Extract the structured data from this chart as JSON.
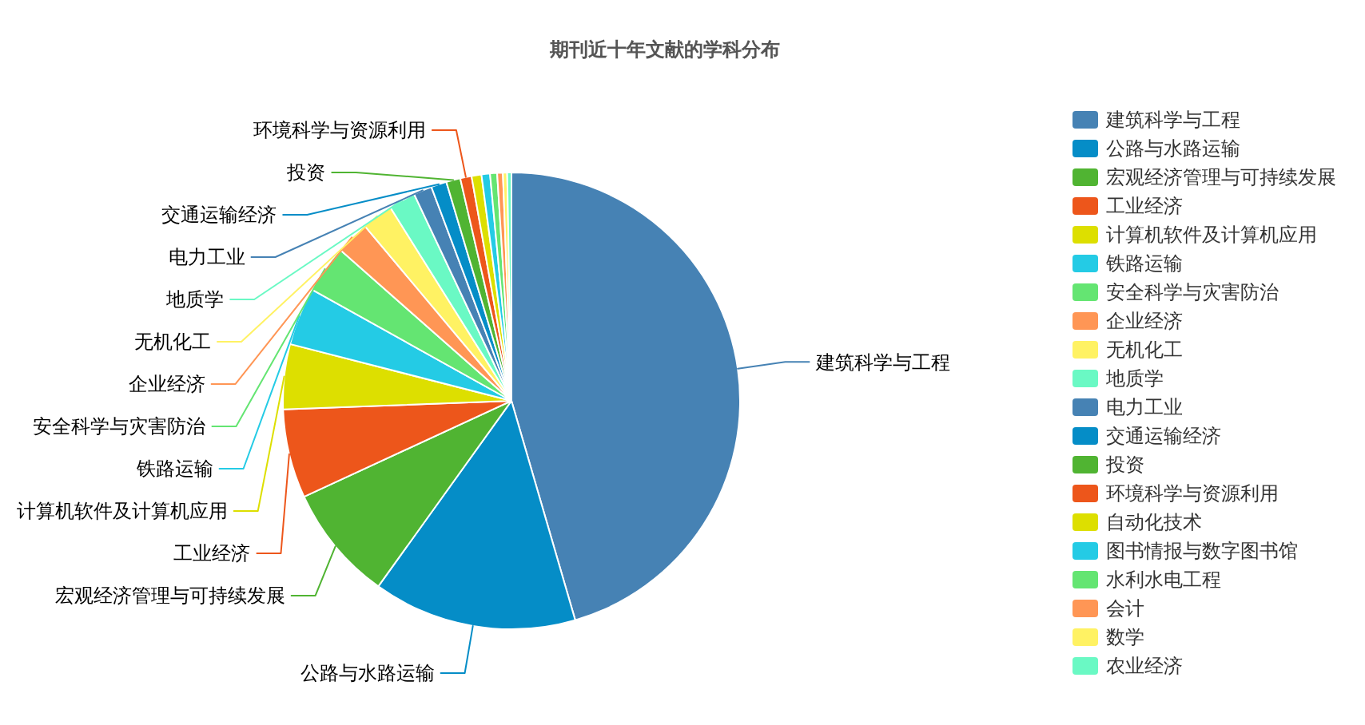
{
  "chart_data": {
    "type": "pie",
    "title": "期刊近十年文献的学科分布",
    "categories": [
      "建筑科学与工程",
      "公路与水路运输",
      "宏观经济管理与可持续发展",
      "工业经济",
      "计算机软件及计算机应用",
      "铁路运输",
      "安全科学与灾害防治",
      "企业经济",
      "无机化工",
      "地质学",
      "电力工业",
      "交通运输经济",
      "投资",
      "环境科学与资源利用",
      "自动化技术",
      "图书情报与数字图书馆",
      "水利水电工程",
      "会计",
      "数学",
      "农业经济"
    ],
    "values": [
      45.5,
      14.4,
      8.2,
      6.3,
      4.6,
      4.1,
      3.4,
      2.4,
      2.2,
      1.9,
      1.3,
      1.1,
      1.0,
      0.8,
      0.7,
      0.6,
      0.5,
      0.4,
      0.3,
      0.3
    ],
    "colors": [
      "#4682b4",
      "#058dc7",
      "#50b432",
      "#ed561b",
      "#dddf00",
      "#24cbe5",
      "#64e572",
      "#ff9655",
      "#fff263",
      "#6af9c4",
      "#4682b4",
      "#058dc7",
      "#50b432",
      "#ed561b",
      "#dddf00",
      "#24cbe5",
      "#64e572",
      "#ff9655",
      "#fff263",
      "#6af9c4"
    ],
    "legend": "right"
  }
}
